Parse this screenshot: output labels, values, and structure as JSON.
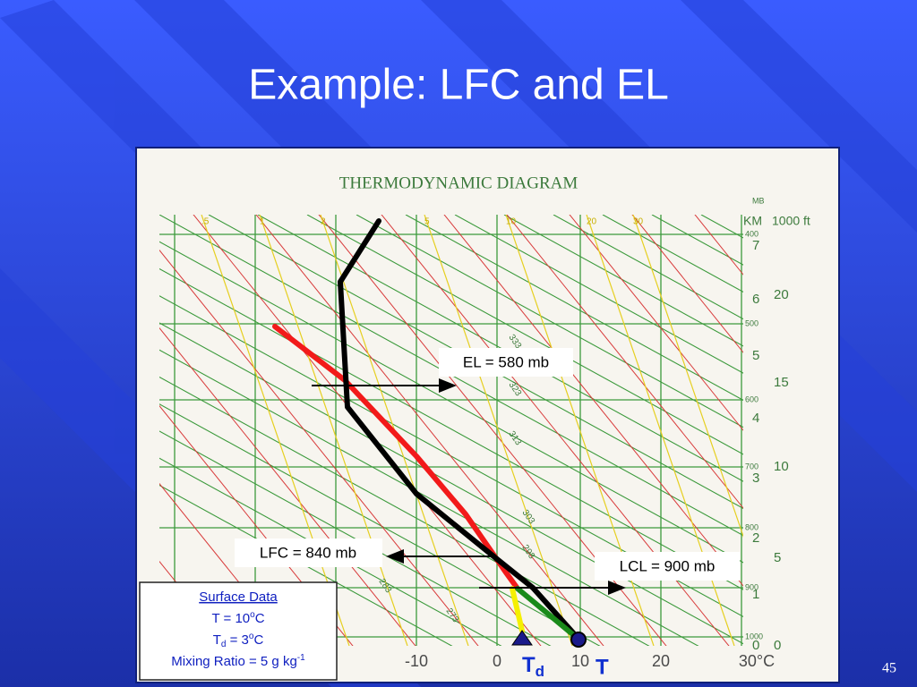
{
  "title": "Example:  LFC and EL",
  "diagram": {
    "title": "THERMODYNAMIC DIAGRAM",
    "unit_labels": {
      "mb": "MB",
      "km": "KM",
      "ft": "1000 ft"
    },
    "temperature_labels": [
      "-10",
      "0",
      "10",
      "20",
      "30°C"
    ],
    "pressure_labels": [
      "400",
      "500",
      "600",
      "700",
      "800",
      "900",
      "1000"
    ],
    "km_labels": [
      "7",
      "6",
      "5",
      "4",
      "3",
      "2",
      "1",
      "0"
    ],
    "ft_labels": [
      "20",
      "15",
      "10",
      "5",
      "0"
    ],
    "mixing_ratio_labels": [
      ".5",
      "1",
      "2",
      "5",
      "10",
      "20",
      "30"
    ],
    "adiabat_labels": [
      "333",
      "323",
      "313",
      "303",
      "293",
      "283",
      "273",
      "263"
    ]
  },
  "annotations": {
    "el": "EL = 580 mb",
    "lfc": "LFC = 840 mb",
    "lcl": "LCL = 900 mb"
  },
  "surface_data": {
    "heading": "Surface Data",
    "t": {
      "text": "T = 10",
      "sup": "o",
      "unit": "C"
    },
    "td": {
      "base": "T",
      "sub": "d",
      "text": " = 3",
      "sup": "o",
      "unit": "C"
    },
    "mixing": {
      "text": "Mixing Ratio = 5 g kg",
      "sup": "-1"
    }
  },
  "markers": {
    "td": {
      "base": "T",
      "sub": "d"
    },
    "t": "T"
  },
  "page_number": "45"
}
